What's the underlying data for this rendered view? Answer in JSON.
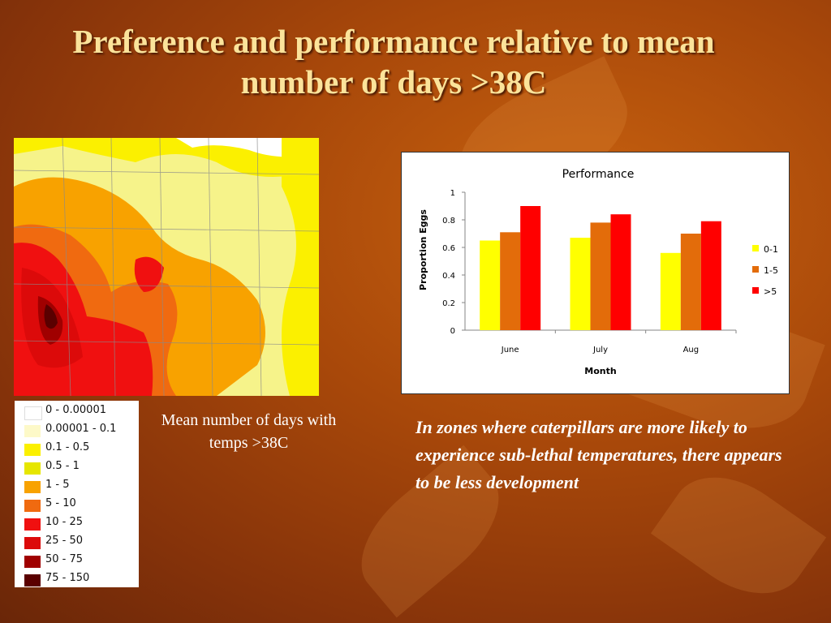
{
  "slide": {
    "title": "Preference and performance relative to mean number of days >38C",
    "map_caption": "Mean number of days with temps >38C",
    "note": "In zones where caterpillars are more likely to experience sub-lethal temperatures, there appears to be less development"
  },
  "map_legend": [
    {
      "label": "0 - 0.00001",
      "color": "#ffffff"
    },
    {
      "label": "0.00001 - 0.1",
      "color": "#fdf9c8"
    },
    {
      "label": "0.1 - 0.5",
      "color": "#fbf000"
    },
    {
      "label": "0.5 - 1",
      "color": "#e6e600"
    },
    {
      "label": "1 - 5",
      "color": "#f8a200"
    },
    {
      "label": "5 - 10",
      "color": "#f06a10"
    },
    {
      "label": "10 - 25",
      "color": "#f01010"
    },
    {
      "label": "25 - 50",
      "color": "#dc0a0a"
    },
    {
      "label": "50 - 75",
      "color": "#a00000"
    },
    {
      "label": "75 - 150",
      "color": "#5a0000"
    }
  ],
  "chart_data": {
    "type": "bar",
    "title": "Performance",
    "xlabel": "Month",
    "ylabel": "Proportion Eggs",
    "categories": [
      "June",
      "July",
      "Aug"
    ],
    "series": [
      {
        "name": "0-1",
        "color": "#ffff00",
        "values": [
          0.65,
          0.67,
          0.56
        ]
      },
      {
        "name": "1-5",
        "color": "#e36c0a",
        "values": [
          0.71,
          0.78,
          0.7
        ]
      },
      {
        "name": ">5",
        "color": "#ff0000",
        "values": [
          0.9,
          0.84,
          0.79
        ]
      }
    ],
    "ylim": [
      0,
      1
    ],
    "yticks": [
      "0",
      "0.2",
      "0.4",
      "0.6",
      "0.8",
      "1"
    ],
    "grid": false,
    "legend_position": "right"
  }
}
